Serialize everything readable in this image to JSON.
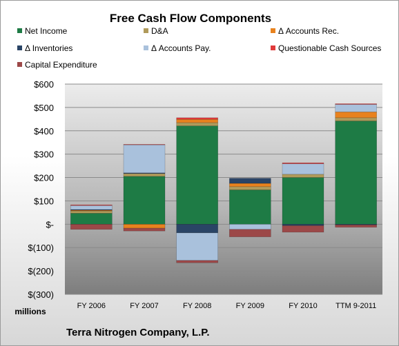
{
  "chart_data": {
    "type": "bar",
    "stacked": true,
    "title": "Free Cash Flow Components",
    "unit_label": "millions",
    "footer": "Terra Nitrogen Company, L.P.",
    "categories": [
      "FY 2006",
      "FY 2007",
      "FY 2008",
      "FY 2009",
      "FY 2010",
      "TTM 9-2011"
    ],
    "y_ticks": [
      {
        "value": 600,
        "label": "$600"
      },
      {
        "value": 500,
        "label": "$500"
      },
      {
        "value": 400,
        "label": "$400"
      },
      {
        "value": 300,
        "label": "$300"
      },
      {
        "value": 200,
        "label": "$200"
      },
      {
        "value": 100,
        "label": "$100"
      },
      {
        "value": 0,
        "label": "$-"
      },
      {
        "value": -100,
        "label": "$(100)"
      },
      {
        "value": -200,
        "label": "$(200)"
      },
      {
        "value": -300,
        "label": "$(300)"
      }
    ],
    "ylim": [
      -300,
      600
    ],
    "grid": true,
    "legend_position": "top",
    "series": [
      {
        "name": "Net Income",
        "color": "#1e7b45",
        "values": [
          47,
          205,
          421,
          147,
          200,
          442
        ]
      },
      {
        "name": "D&A",
        "color": "#b09a5a",
        "values": [
          10,
          12,
          14,
          14,
          14,
          14
        ]
      },
      {
        "name": "Δ Accounts Rec.",
        "color": "#e8821e",
        "values": [
          3,
          -17,
          14,
          14,
          0,
          25
        ]
      },
      {
        "name": "Δ Inventories",
        "color": "#2a4466",
        "values": [
          3,
          3,
          -37,
          22,
          -6,
          -3
        ]
      },
      {
        "name": "Δ Accounts Pay.",
        "color": "#a9c1dc",
        "values": [
          17,
          120,
          -118,
          -22,
          45,
          32
        ]
      },
      {
        "name": "Questionable Cash Sources",
        "color": "#e03a3a",
        "values": [
          3,
          2,
          7,
          0,
          4,
          3
        ]
      },
      {
        "name": "Capital Expenditure",
        "color": "#9c4848",
        "values": [
          -22,
          -12,
          -10,
          -32,
          -28,
          -10
        ]
      }
    ]
  }
}
